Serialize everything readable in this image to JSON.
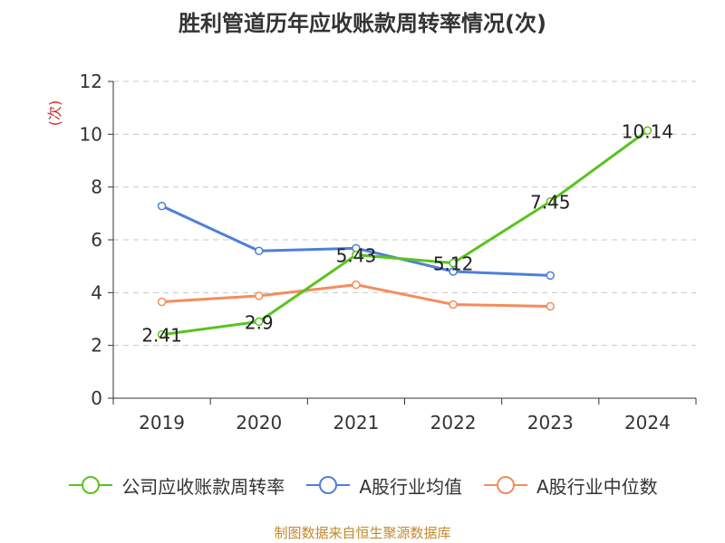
{
  "chart_data": {
    "type": "line",
    "title": "胜利管道历年应收账款周转率情况(次)",
    "ylabel": "(次)",
    "xlabel": "",
    "categories": [
      "2019",
      "2020",
      "2021",
      "2022",
      "2023",
      "2024"
    ],
    "ylim": [
      0,
      12
    ],
    "yticks": [
      0,
      2,
      4,
      6,
      8,
      10,
      12
    ],
    "grid": true,
    "legend_position": "bottom",
    "series": [
      {
        "name": "公司应收账款周转率",
        "color": "#5ac31f",
        "values": [
          2.41,
          2.9,
          5.43,
          5.12,
          7.45,
          10.14
        ],
        "data_labels": [
          "2.41",
          "2.9",
          "5.43",
          "5.12",
          "7.45",
          "10.14"
        ]
      },
      {
        "name": "A股行业均值",
        "color": "#4f7fd9",
        "values": [
          7.28,
          5.58,
          5.68,
          4.8,
          4.65,
          null
        ]
      },
      {
        "name": "A股行业中位数",
        "color": "#f58c5a",
        "values": [
          3.65,
          3.88,
          4.3,
          3.55,
          3.48,
          null
        ]
      }
    ]
  },
  "footer": {
    "source": "制图数据来自恒生聚源数据库"
  }
}
